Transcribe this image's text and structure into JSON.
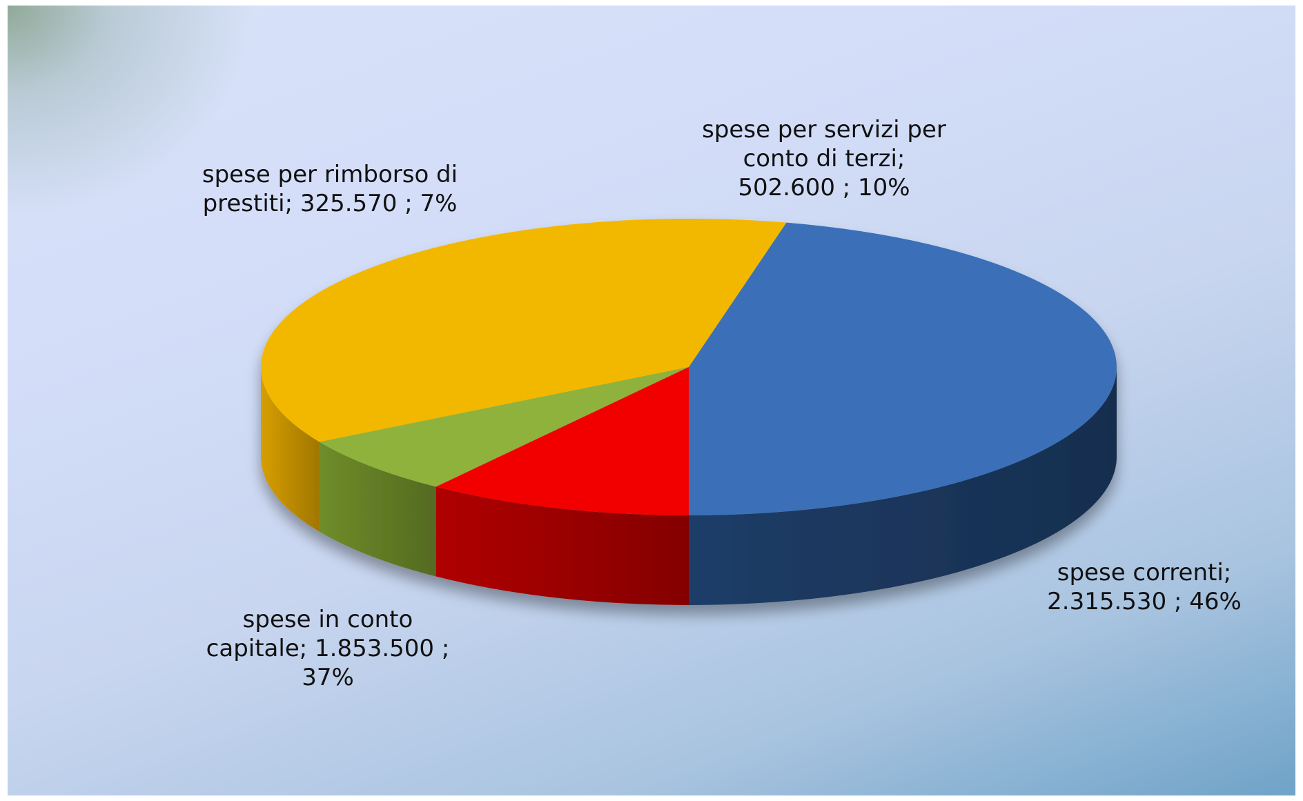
{
  "chart_data": {
    "type": "pie",
    "style": "3d",
    "slices": [
      {
        "name": "spese correnti",
        "value": 2315530,
        "value_label": "2.315.530",
        "percent_label": "46%",
        "color": "#3a6fb8",
        "side_color": "#1e3d68",
        "label_lines": [
          "spese correnti;",
          "2.315.530 ; 46%"
        ]
      },
      {
        "name": "spese in conto capitale",
        "value": 1853500,
        "value_label": "1.853.500",
        "percent_label": "37%",
        "color": "#f2b800",
        "side_color": "#d69e00",
        "label_lines": [
          "spese in conto",
          "capitale;  1.853.500 ;",
          "37%"
        ]
      },
      {
        "name": "spese per rimborso di prestiti",
        "value": 325570,
        "value_label": "325.570",
        "percent_label": "7%",
        "color": "#8fb23c",
        "side_color": "#6f8d2a",
        "label_lines": [
          "spese per rimborso di",
          "prestiti;  325.570 ; 7%"
        ]
      },
      {
        "name": "spese per servizi per conto di terzi",
        "value": 502600,
        "value_label": "502.600",
        "percent_label": "10%",
        "color": "#f20000",
        "side_color": "#b00000",
        "label_lines": [
          "spese per servizi per",
          "conto di terzi;",
          "502.600 ; 10%"
        ]
      }
    ],
    "title": "",
    "legend": "none"
  }
}
